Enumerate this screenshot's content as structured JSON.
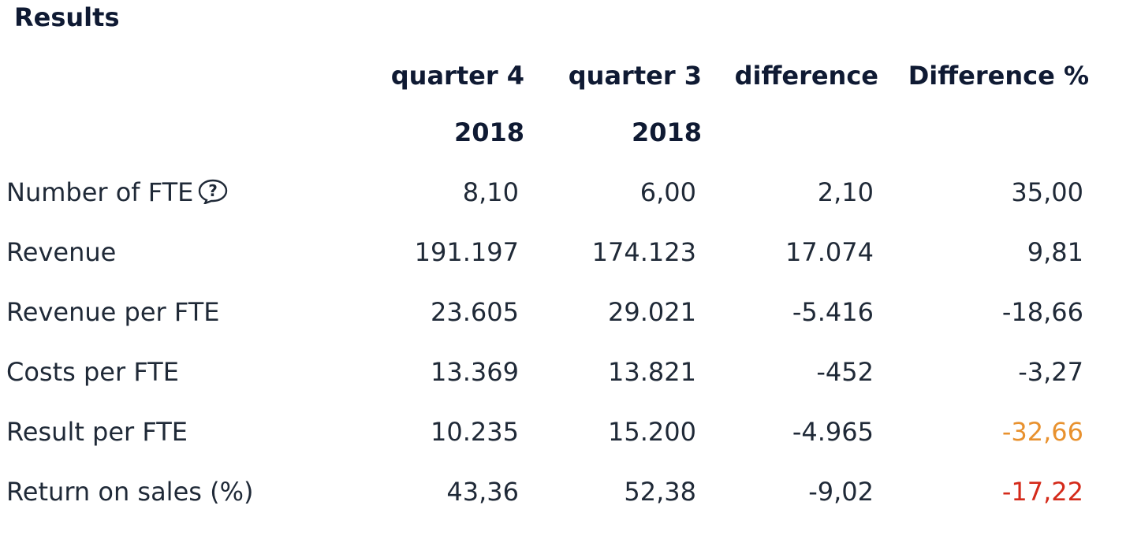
{
  "title": "Results",
  "columns": [
    {
      "line1": "quarter 4",
      "line2": "2018"
    },
    {
      "line1": "quarter 3",
      "line2": "2018"
    },
    {
      "line1": "difference",
      "line2": ""
    },
    {
      "line1": "Difference %",
      "line2": ""
    }
  ],
  "rows": [
    {
      "label": "Number of FTE",
      "q4": "8,10",
      "q3": "6,00",
      "diff": "2,10",
      "diff_pct": "35,00",
      "icon": "help-bubble-icon"
    },
    {
      "label": "Revenue",
      "q4": "191.197",
      "q3": "174.123",
      "diff": "17.074",
      "diff_pct": "9,81"
    },
    {
      "label": "Revenue per FTE",
      "q4": "23.605",
      "q3": "29.021",
      "diff": "-5.416",
      "diff_pct": "-18,66"
    },
    {
      "label": "Costs per FTE",
      "q4": "13.369",
      "q3": "13.821",
      "diff": "-452",
      "diff_pct": "-3,27"
    },
    {
      "label": "Result per FTE",
      "q4": "10.235",
      "q3": "15.200",
      "diff": "-4.965",
      "diff_pct": "-32,66",
      "status": "warning"
    },
    {
      "label": "Return on sales (%)",
      "q4": "43,36",
      "q3": "52,38",
      "diff": "-9,02",
      "diff_pct": "-17,22",
      "status": "negative"
    }
  ],
  "colors": {
    "heading": "#0f1a33",
    "text": "#1f2937",
    "warning": "#e8912e",
    "negative": "#d42a1a"
  }
}
